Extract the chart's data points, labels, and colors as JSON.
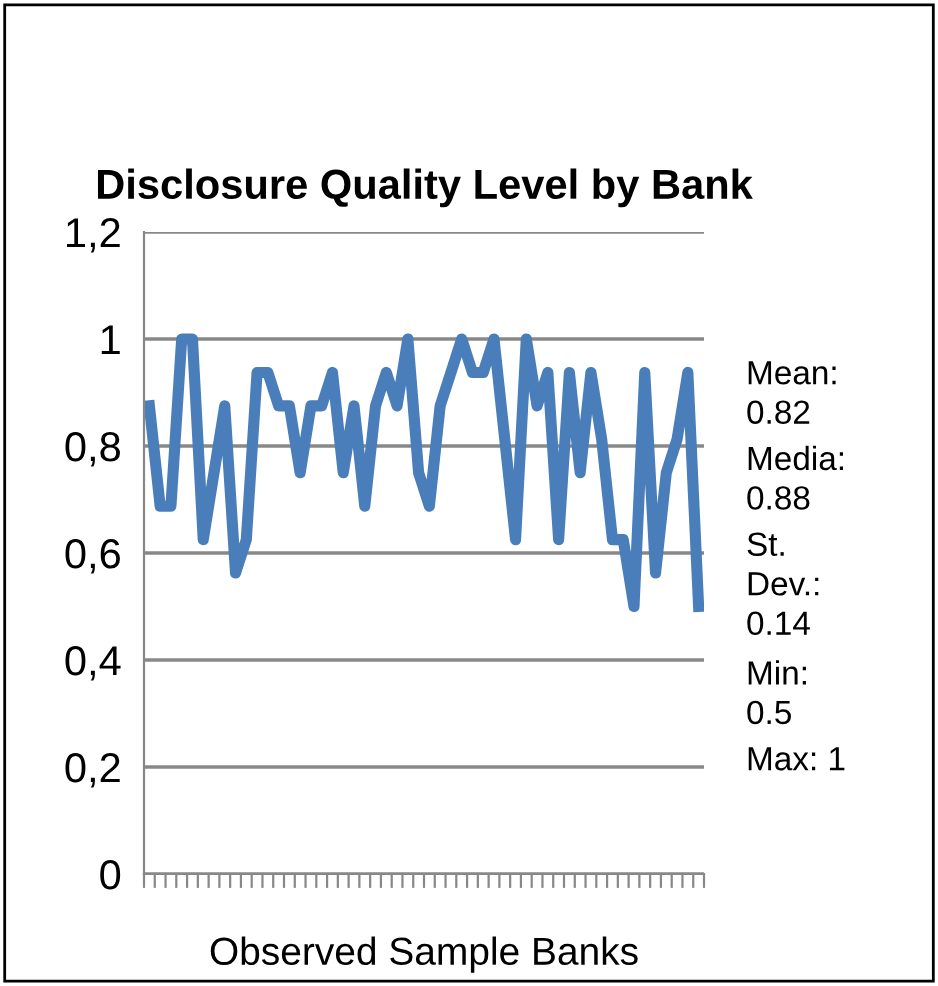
{
  "chart_data": {
    "type": "line",
    "title": "Disclosure Quality Level by Bank",
    "xlabel": "Observed Sample Banks",
    "categories": [
      null,
      null,
      null,
      null,
      null,
      null,
      null,
      null,
      null,
      null,
      null,
      null,
      null,
      null,
      null,
      null,
      null,
      null,
      null,
      null,
      null,
      null,
      null,
      null,
      null,
      null,
      null,
      null,
      null,
      null,
      null,
      null,
      null,
      null,
      null,
      null,
      null,
      null,
      null,
      null,
      null,
      null,
      null,
      null,
      null,
      null,
      null,
      null,
      null,
      null,
      null,
      null
    ],
    "series": [
      {
        "color": "#4a7ebb",
        "values": [
          0.875,
          0.6875,
          0.6875,
          1,
          1,
          0.625,
          0.75,
          0.875,
          0.5625,
          0.625,
          0.9375,
          0.9375,
          0.875,
          0.875,
          0.75,
          0.875,
          0.875,
          0.9375,
          0.75,
          0.875,
          0.6875,
          0.875,
          0.9375,
          0.875,
          1,
          0.75,
          0.6875,
          0.875,
          0.9375,
          1,
          0.9375,
          0.9375,
          1,
          0.8125,
          0.625,
          1,
          0.875,
          0.9375,
          0.625,
          0.9375,
          0.75,
          0.9375,
          0.8125,
          0.625,
          0.625,
          0.5,
          0.9375,
          0.5625,
          0.75,
          0.8125,
          0.9375,
          0.5
        ]
      }
    ],
    "ylim": [
      0,
      1.2
    ],
    "yticks": [
      {
        "value": 0,
        "label": "0"
      },
      {
        "value": 0.2,
        "label": "0,2"
      },
      {
        "value": 0.4,
        "label": "0,4"
      },
      {
        "value": 0.6,
        "label": "0,6"
      },
      {
        "value": 0.8,
        "label": "0,8"
      },
      {
        "value": 1,
        "label": "1"
      },
      {
        "value": 1.2,
        "label": "1,2"
      }
    ],
    "grid": "y",
    "legend": false,
    "marker": "none",
    "line_style": "solid",
    "annotations": [
      "Mean: 0.82",
      "Media: 0.88",
      "St. Dev.: 0.14",
      "Min: 0.5",
      "Max: 1"
    ]
  }
}
